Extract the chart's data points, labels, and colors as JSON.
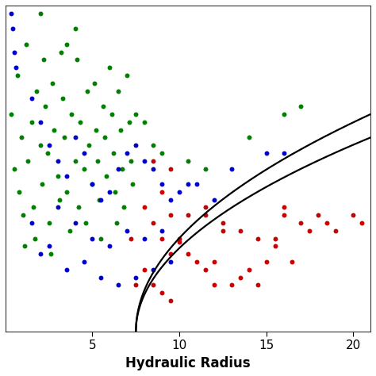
{
  "title": "",
  "xlabel": "Hydraulic Radius",
  "ylabel": "",
  "xlim": [
    0,
    21
  ],
  "ylim": [
    0,
    21
  ],
  "background_color": "#ffffff",
  "green_points": [
    [
      0.3,
      14.0
    ],
    [
      0.5,
      10.5
    ],
    [
      0.7,
      16.5
    ],
    [
      0.8,
      9.0
    ],
    [
      0.9,
      12.5
    ],
    [
      1.0,
      7.5
    ],
    [
      1.1,
      5.5
    ],
    [
      1.2,
      18.5
    ],
    [
      1.3,
      11.0
    ],
    [
      1.5,
      13.5
    ],
    [
      1.6,
      8.0
    ],
    [
      1.7,
      6.0
    ],
    [
      1.8,
      15.5
    ],
    [
      2.0,
      12.0
    ],
    [
      2.1,
      9.5
    ],
    [
      2.2,
      17.5
    ],
    [
      2.3,
      14.5
    ],
    [
      2.4,
      11.5
    ],
    [
      2.5,
      7.0
    ],
    [
      2.6,
      5.0
    ],
    [
      2.7,
      16.0
    ],
    [
      2.8,
      13.0
    ],
    [
      3.0,
      10.0
    ],
    [
      3.1,
      8.5
    ],
    [
      3.2,
      18.0
    ],
    [
      3.3,
      15.0
    ],
    [
      3.4,
      12.5
    ],
    [
      3.5,
      9.0
    ],
    [
      3.7,
      6.5
    ],
    [
      3.8,
      14.0
    ],
    [
      4.0,
      11.0
    ],
    [
      4.1,
      17.5
    ],
    [
      4.2,
      8.0
    ],
    [
      4.3,
      13.5
    ],
    [
      4.5,
      10.5
    ],
    [
      4.6,
      7.0
    ],
    [
      4.7,
      15.5
    ],
    [
      4.8,
      12.0
    ],
    [
      5.0,
      9.5
    ],
    [
      5.1,
      16.0
    ],
    [
      5.2,
      13.0
    ],
    [
      5.3,
      11.0
    ],
    [
      5.4,
      8.5
    ],
    [
      5.5,
      6.0
    ],
    [
      5.6,
      14.5
    ],
    [
      5.7,
      12.5
    ],
    [
      5.8,
      10.0
    ],
    [
      6.0,
      17.0
    ],
    [
      6.1,
      14.0
    ],
    [
      6.2,
      11.5
    ],
    [
      6.3,
      9.0
    ],
    [
      6.4,
      7.0
    ],
    [
      6.5,
      15.5
    ],
    [
      6.6,
      13.0
    ],
    [
      6.7,
      10.5
    ],
    [
      6.8,
      8.0
    ],
    [
      7.0,
      16.5
    ],
    [
      7.1,
      13.5
    ],
    [
      7.2,
      11.0
    ],
    [
      7.3,
      9.5
    ],
    [
      7.5,
      14.0
    ],
    [
      8.0,
      13.5
    ],
    [
      8.5,
      12.0
    ],
    [
      9.0,
      11.5
    ],
    [
      10.5,
      11.0
    ],
    [
      11.5,
      10.5
    ],
    [
      14.0,
      12.5
    ],
    [
      16.0,
      14.0
    ],
    [
      17.0,
      14.5
    ],
    [
      2.0,
      20.5
    ],
    [
      4.0,
      19.5
    ],
    [
      3.5,
      18.5
    ]
  ],
  "blue_points": [
    [
      0.3,
      20.5
    ],
    [
      0.4,
      19.5
    ],
    [
      0.5,
      18.0
    ],
    [
      0.6,
      17.0
    ],
    [
      1.5,
      15.0
    ],
    [
      2.0,
      13.5
    ],
    [
      2.5,
      12.0
    ],
    [
      3.0,
      11.0
    ],
    [
      3.5,
      10.0
    ],
    [
      4.0,
      12.5
    ],
    [
      4.5,
      11.5
    ],
    [
      5.0,
      9.5
    ],
    [
      5.5,
      8.5
    ],
    [
      6.0,
      9.0
    ],
    [
      6.5,
      10.5
    ],
    [
      7.0,
      11.5
    ],
    [
      7.5,
      12.0
    ],
    [
      8.0,
      11.0
    ],
    [
      8.5,
      10.5
    ],
    [
      9.0,
      9.5
    ],
    [
      9.5,
      8.5
    ],
    [
      10.0,
      9.0
    ],
    [
      10.5,
      9.5
    ],
    [
      11.0,
      9.5
    ],
    [
      12.0,
      8.5
    ],
    [
      13.0,
      10.5
    ],
    [
      15.0,
      11.5
    ],
    [
      16.0,
      11.5
    ],
    [
      3.0,
      8.0
    ],
    [
      4.0,
      7.0
    ],
    [
      5.0,
      6.0
    ],
    [
      6.0,
      5.5
    ],
    [
      7.0,
      6.5
    ],
    [
      8.0,
      6.0
    ],
    [
      9.0,
      6.5
    ],
    [
      2.5,
      5.5
    ],
    [
      1.5,
      7.0
    ],
    [
      2.0,
      5.0
    ],
    [
      3.5,
      4.0
    ],
    [
      4.5,
      4.5
    ],
    [
      5.5,
      3.5
    ],
    [
      6.5,
      3.0
    ],
    [
      7.5,
      3.5
    ],
    [
      8.5,
      4.0
    ],
    [
      9.5,
      4.5
    ]
  ],
  "red_points": [
    [
      7.2,
      6.0
    ],
    [
      7.5,
      3.0
    ],
    [
      8.0,
      8.0
    ],
    [
      8.0,
      4.0
    ],
    [
      8.5,
      7.0
    ],
    [
      8.5,
      3.0
    ],
    [
      9.0,
      9.0
    ],
    [
      9.0,
      6.0
    ],
    [
      9.0,
      2.5
    ],
    [
      9.5,
      7.5
    ],
    [
      9.5,
      5.0
    ],
    [
      9.5,
      2.0
    ],
    [
      10.0,
      6.0
    ],
    [
      10.0,
      5.8
    ],
    [
      10.5,
      7.5
    ],
    [
      10.5,
      5.0
    ],
    [
      11.0,
      4.5
    ],
    [
      11.5,
      8.0
    ],
    [
      11.5,
      7.5
    ],
    [
      11.5,
      4.0
    ],
    [
      12.0,
      4.5
    ],
    [
      12.0,
      3.0
    ],
    [
      12.5,
      7.0
    ],
    [
      12.5,
      6.5
    ],
    [
      13.0,
      3.0
    ],
    [
      13.5,
      6.5
    ],
    [
      13.5,
      3.5
    ],
    [
      14.0,
      4.0
    ],
    [
      14.5,
      6.0
    ],
    [
      14.5,
      3.0
    ],
    [
      15.0,
      4.5
    ],
    [
      15.5,
      6.0
    ],
    [
      15.5,
      5.5
    ],
    [
      16.0,
      8.0
    ],
    [
      16.0,
      7.5
    ],
    [
      16.5,
      4.5
    ],
    [
      17.0,
      7.0
    ],
    [
      17.5,
      6.5
    ],
    [
      18.0,
      7.5
    ],
    [
      18.5,
      7.0
    ],
    [
      19.0,
      6.5
    ],
    [
      20.0,
      7.5
    ],
    [
      20.5,
      7.0
    ],
    [
      8.5,
      11.0
    ],
    [
      9.5,
      10.5
    ]
  ],
  "dot_size": 18,
  "green_color": "#008000",
  "blue_color": "#0000cc",
  "red_color": "#cc0000",
  "curve_color": "#000000",
  "curve_lw": 1.6
}
